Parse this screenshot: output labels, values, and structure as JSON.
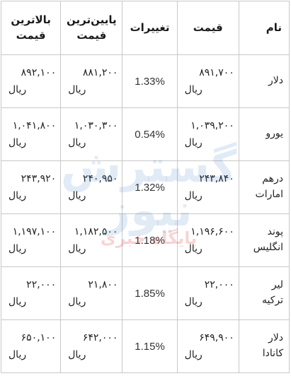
{
  "table": {
    "headers": {
      "name": "نام",
      "price": "قیمت",
      "change": "تغییرات",
      "low_line1": "پایین‌ترین",
      "low_line2": "قیمت",
      "high_line1": "بالاترین",
      "high_line2": "قیمت"
    },
    "unit": "ریال",
    "rows": [
      {
        "name1": "دلار",
        "name2": "",
        "price": "۸۹۱,۷۰۰",
        "change": "1.33%",
        "low": "۸۸۱,۲۰۰",
        "high": "۸۹۲,۱۰۰"
      },
      {
        "name1": "یورو",
        "name2": "",
        "price": "۱,۰۳۹,۲۰۰",
        "change": "0.54%",
        "low": "۱,۰۳۰,۳۰۰",
        "high": "۱,۰۴۱,۸۰۰"
      },
      {
        "name1": "درهم",
        "name2": "امارات",
        "price": "۲۴۳,۸۴۰",
        "change": "1.32%",
        "low": "۲۴۰,۹۵۰",
        "high": "۲۴۳,۹۲۰"
      },
      {
        "name1": "پوند",
        "name2": "انگلیس",
        "price": "۱,۱۹۶,۶۰۰",
        "change": "1.18%",
        "low": "۱,۱۸۲,۵۰۰",
        "high": "۱,۱۹۷,۱۰۰"
      },
      {
        "name1": "لیر",
        "name2": "ترکیه",
        "price": "۲۲,۰۰۰",
        "change": "1.85%",
        "low": "۲۱,۸۰۰",
        "high": "۲۲,۰۰۰"
      },
      {
        "name1": "دلار",
        "name2": "کانادا",
        "price": "۶۴۹,۹۰۰",
        "change": "1.15%",
        "low": "۶۴۲,۰۰۰",
        "high": "۶۵۰,۱۰۰"
      }
    ]
  },
  "watermark": {
    "main": "گسترش نیوز",
    "sub": "پایگاه خبری"
  }
}
